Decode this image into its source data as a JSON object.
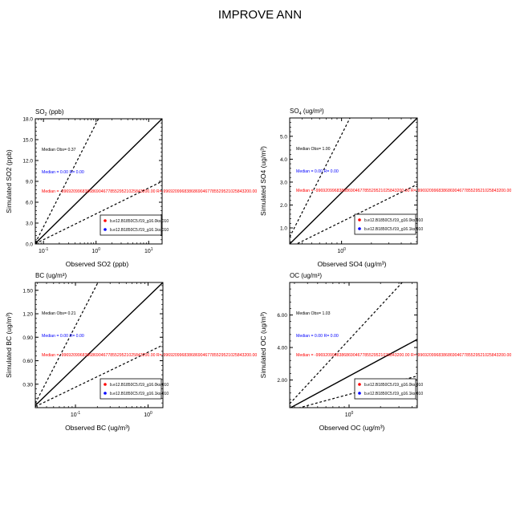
{
  "page_title": "IMPROVE ANN",
  "colors": {
    "frame": "#000000",
    "series1": "#ff0000",
    "series2": "#0000ff",
    "median_obs": "#000000"
  },
  "legend_entries": [
    "b.e12.B1850C5.f19_g16.0ks.010",
    "b.e12.B1850C5.f19_g16.1ks.010"
  ],
  "chart_data": [
    {
      "type": "scatter",
      "title_main": "SO",
      "title_sub": "2",
      "title_rest": " (ppb)",
      "xlabel": "Observed SO2 (ppb)",
      "ylabel": "Simulated SO2 (ppb)",
      "x_scale": "log",
      "xlim": [
        0.07,
        18
      ],
      "x_ticks": [
        {
          "value": 0.1,
          "base": "10",
          "exp": "-1"
        },
        {
          "value": 1,
          "base": "10",
          "exp": "0"
        },
        {
          "value": 10,
          "base": "10",
          "exp": "1"
        }
      ],
      "y_scale": "linear",
      "ylim": [
        0,
        18
      ],
      "y_ticks": [
        "0.0",
        "3.0",
        "6.0",
        "9.0",
        "12.0",
        "15.0",
        "18.0"
      ],
      "reference_lines": [
        "1:1 solid",
        "2:1 dashed",
        "1:2 dashed"
      ],
      "annotations": {
        "median_obs": "Median Obs= 0.37",
        "series2_stats": "Median = 0.00 R= 0.00",
        "series1_stats": "Median = -99692099683868690467785529521025843200.00 R=-99692099683868690467785529521025843200.00"
      },
      "legend_placement": "bottom-right",
      "series": [
        {
          "name": "b.e12.B1850C5.f19_g16.0ks.010",
          "values": []
        },
        {
          "name": "b.e12.B1850C5.f19_g16.1ks.010",
          "values": []
        }
      ]
    },
    {
      "type": "scatter",
      "title_main": "SO",
      "title_sub": "4",
      "title_rest": " (ug/m³)",
      "xlabel": "Observed SO4 (ug/m³)",
      "ylabel": "Simulated SO4 (ug/m³)",
      "x_scale": "log",
      "xlim": [
        0.3,
        5.8
      ],
      "x_ticks": [
        {
          "value": 1,
          "base": "10",
          "exp": "0"
        }
      ],
      "y_scale": "linear",
      "ylim": [
        0.3,
        5.8
      ],
      "y_ticks": [
        "1.0",
        "2.0",
        "3.0",
        "4.0",
        "5.0"
      ],
      "reference_lines": [
        "1:1 solid",
        "2:1 dashed",
        "1:2 dashed"
      ],
      "annotations": {
        "median_obs": "Median Obs= 1.00",
        "series2_stats": "Median = 0.00 R= 0.00",
        "series1_stats": "Median = -99692099683868690467785529521025843200.00 R=-99692099683868690467785529521025843200.00"
      },
      "legend_placement": "bottom-right",
      "series": [
        {
          "name": "b.e12.B1850C5.f19_g16.0ks.010",
          "values": []
        },
        {
          "name": "b.e12.B1850C5.f19_g16.1ks.010",
          "values": []
        }
      ]
    },
    {
      "type": "scatter",
      "title_main": "BC",
      "title_sub": "",
      "title_rest": " (ug/m³)",
      "xlabel": "Observed BC (ug/m³)",
      "ylabel": "Simulated BC (ug/m³)",
      "x_scale": "log",
      "xlim": [
        0.028,
        1.6
      ],
      "x_ticks": [
        {
          "value": 0.1,
          "base": "10",
          "exp": "-1"
        },
        {
          "value": 1,
          "base": "10",
          "exp": "0"
        }
      ],
      "y_scale": "linear",
      "ylim": [
        0.0,
        1.6
      ],
      "y_ticks": [
        "0.30",
        "0.60",
        "0.90",
        "1.20",
        "1.50"
      ],
      "reference_lines": [
        "1:1 solid",
        "2:1 dashed",
        "1:2 dashed"
      ],
      "annotations": {
        "median_obs": "Median Obs= 0.21",
        "series2_stats": "Median = 0.00 R= 0.00",
        "series1_stats": "Median = -99692099683868690467785529521025843200.00 R=-99692099683868690467785529521025843200.00"
      },
      "legend_placement": "bottom-right",
      "series": [
        {
          "name": "b.e12.B1850C5.f19_g16.0ks.010",
          "values": []
        },
        {
          "name": "b.e12.B1850C5.f19_g16.1ks.010",
          "values": []
        }
      ]
    },
    {
      "type": "scatter",
      "title_main": "OC",
      "title_sub": "",
      "title_rest": " (ug/m³)",
      "xlabel": "Observed OC (ug/m³)",
      "ylabel": "Simulated OC (ug/m³)",
      "x_scale": "log",
      "xlim": [
        0.27,
        4.5
      ],
      "x_ticks": [
        {
          "value": 1,
          "base": "10",
          "exp": "0"
        }
      ],
      "y_scale": "linear",
      "ylim": [
        0.3,
        8.0
      ],
      "y_ticks": [
        "2.00",
        "4.00",
        "6.00"
      ],
      "reference_lines": [
        "1:1 solid",
        "2:1 dashed",
        "1:2 dashed"
      ],
      "annotations": {
        "median_obs": "Median Obs= 1.03",
        "series2_stats": "Median = 0.00 R= 0.00",
        "series1_stats": "Median = -99692099683868690467785529521025843200.00 R=-99692099683868690467785529521025843200.00"
      },
      "legend_placement": "bottom-right",
      "series": [
        {
          "name": "b.e12.B1850C5.f19_g16.0ks.010",
          "values": []
        },
        {
          "name": "b.e12.B1850C5.f19_g16.1ks.010",
          "values": []
        }
      ]
    }
  ]
}
